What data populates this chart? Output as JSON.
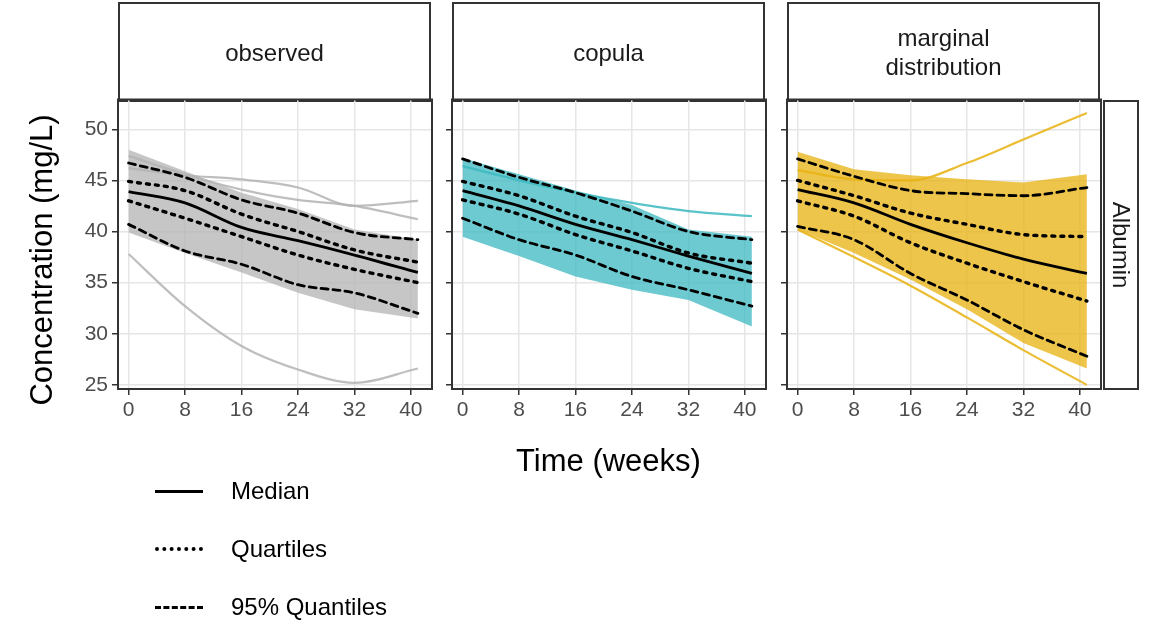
{
  "chart_data": [
    {
      "type": "line",
      "title": "observed",
      "ylabel": "Concentration (mg/L)",
      "x": [
        0,
        8,
        16,
        24,
        32,
        41
      ],
      "xlim": [
        -1.5,
        43
      ],
      "ylim": [
        24.6,
        52.9
      ],
      "xticks": [
        0,
        8,
        16,
        24,
        32,
        40
      ],
      "yticks": [
        25,
        30,
        35,
        40,
        45,
        50
      ],
      "grid": true,
      "legend": "bottom left",
      "marker": "none",
      "series": [
        {
          "color": "#b3b3b3",
          "values": [
            47.4,
            45.6,
            44.1,
            43.1,
            42.5,
            41.2
          ],
          "lower": [
            39.9,
            37.9,
            36.0,
            34.0,
            32.4,
            31.5
          ],
          "upper": [
            48.0,
            45.9,
            43.8,
            42.2,
            40.2,
            39.2
          ]
        },
        {
          "color": "#b3b3b3",
          "values": [
            46.2,
            45.5,
            45.1,
            44.3,
            42.5,
            43.0
          ]
        },
        {
          "color": "#b3b3b3",
          "values": [
            37.8,
            32.7,
            28.8,
            26.5,
            25.2,
            26.6
          ]
        },
        {
          "name": "Median",
          "color": "#000000",
          "line_style": "solid",
          "values": [
            43.9,
            42.8,
            40.4,
            39.1,
            37.7,
            36.0
          ]
        },
        {
          "name": "Quartiles",
          "color": "#000000",
          "line_style": "dotted",
          "values": [
            44.9,
            44.0,
            41.7,
            40.0,
            38.2,
            37.0
          ]
        },
        {
          "color": "#000000",
          "line_style": "dotted",
          "values": [
            43.0,
            41.3,
            39.5,
            37.7,
            36.3,
            35.0
          ]
        },
        {
          "name": "95% Quantiles",
          "color": "#000000",
          "line_style": "dashed",
          "values": [
            46.7,
            45.3,
            43.1,
            41.8,
            39.9,
            39.2
          ]
        },
        {
          "color": "#000000",
          "line_style": "dashed",
          "values": [
            40.7,
            38.1,
            36.8,
            34.8,
            34.0,
            32.0
          ]
        }
      ]
    },
    {
      "type": "line",
      "title": "copula",
      "xlabel": "Time (weeks)",
      "x": [
        0,
        8,
        16,
        24,
        32,
        41
      ],
      "xlim": [
        -1.5,
        43
      ],
      "ylim": [
        24.6,
        52.9
      ],
      "xticks": [
        0,
        8,
        16,
        24,
        32,
        40
      ],
      "yticks": [
        25,
        30,
        35,
        40,
        45,
        50
      ],
      "grid": true,
      "tick_labels": "x",
      "marker": "none",
      "series": [
        {
          "color": "#3bb8c0",
          "values": [
            46.4,
            45.0,
            43.8,
            42.8,
            42.0,
            41.5
          ],
          "lower": [
            39.5,
            37.6,
            35.6,
            34.3,
            33.3,
            30.7
          ],
          "upper": [
            47.2,
            45.6,
            44.0,
            42.6,
            40.2,
            39.5
          ]
        },
        {
          "name": "Median",
          "color": "#000000",
          "line_style": "solid",
          "values": [
            44.0,
            42.5,
            40.7,
            39.2,
            37.6,
            35.9
          ]
        },
        {
          "name": "Quartiles",
          "color": "#000000",
          "line_style": "dotted",
          "values": [
            44.9,
            43.5,
            41.5,
            39.9,
            37.9,
            36.9
          ]
        },
        {
          "color": "#000000",
          "line_style": "dotted",
          "values": [
            43.1,
            41.7,
            39.7,
            38.1,
            36.4,
            35.1
          ]
        },
        {
          "name": "95% Quantiles",
          "color": "#000000",
          "line_style": "dashed",
          "values": [
            47.1,
            45.3,
            43.8,
            42.0,
            40.0,
            39.2
          ]
        },
        {
          "color": "#000000",
          "line_style": "dashed",
          "values": [
            41.3,
            39.2,
            37.7,
            35.6,
            34.3,
            32.7
          ]
        }
      ]
    },
    {
      "type": "line",
      "title": "marginal distribution",
      "y2label": "Albumin",
      "x": [
        0,
        8,
        16,
        24,
        32,
        41
      ],
      "xlim": [
        -1.5,
        43
      ],
      "ylim": [
        24.6,
        52.9
      ],
      "xticks": [
        0,
        8,
        16,
        24,
        32,
        40
      ],
      "yticks": [
        25,
        30,
        35,
        40,
        45,
        50
      ],
      "grid": true,
      "tick_labels": "x",
      "marker": "none",
      "series": [
        {
          "color": "#e8b10f",
          "values": [
            46.0,
            45.1,
            45.0,
            46.7,
            49.0,
            51.6
          ],
          "lower": [
            40.2,
            37.9,
            35.3,
            32.4,
            29.1,
            26.6
          ],
          "upper": [
            47.8,
            46.1,
            45.5,
            45.1,
            44.8,
            45.6
          ]
        },
        {
          "color": "#e8b10f",
          "values": [
            40.2,
            37.5,
            34.7,
            31.6,
            28.4,
            25.0
          ]
        },
        {
          "name": "Median",
          "color": "#000000",
          "line_style": "solid",
          "values": [
            44.1,
            42.8,
            40.7,
            38.9,
            37.3,
            35.9
          ]
        },
        {
          "name": "Quartiles",
          "color": "#000000",
          "line_style": "dotted",
          "values": [
            45.0,
            43.5,
            41.8,
            40.7,
            39.7,
            39.5
          ]
        },
        {
          "color": "#000000",
          "line_style": "dotted",
          "values": [
            43.0,
            41.5,
            38.9,
            36.9,
            35.1,
            33.2
          ]
        },
        {
          "name": "95% Quantiles",
          "color": "#000000",
          "line_style": "dashed",
          "values": [
            47.1,
            45.4,
            44.0,
            43.7,
            43.5,
            44.3
          ]
        },
        {
          "color": "#000000",
          "line_style": "dashed",
          "values": [
            40.5,
            39.2,
            35.9,
            33.3,
            30.4,
            27.8
          ]
        }
      ]
    }
  ]
}
